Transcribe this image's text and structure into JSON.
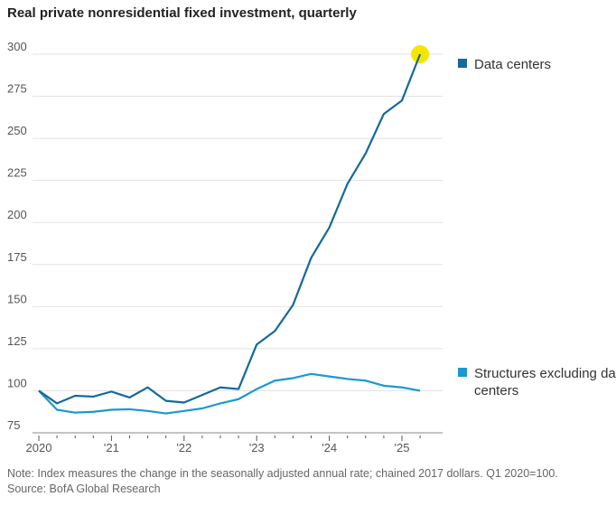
{
  "chart_data": {
    "type": "line",
    "title": "Real private nonresidential fixed investment, quarterly",
    "x": [
      "2020Q1",
      "2020Q2",
      "2020Q3",
      "2020Q4",
      "2021Q1",
      "2021Q2",
      "2021Q3",
      "2021Q4",
      "2022Q1",
      "2022Q2",
      "2022Q3",
      "2022Q4",
      "2023Q1",
      "2023Q2",
      "2023Q3",
      "2023Q4",
      "2024Q1",
      "2024Q2",
      "2024Q3",
      "2024Q4",
      "2025Q1",
      "2025Q2"
    ],
    "x_tick_labels": [
      "2020",
      "'21",
      "'22",
      "'23",
      "'24",
      "'25"
    ],
    "y_tick_labels": [
      "75",
      "100",
      "125",
      "150",
      "175",
      "200",
      "225",
      "250",
      "275",
      "300"
    ],
    "ylim": [
      75,
      300
    ],
    "grid": true,
    "legend_placement": "right",
    "series": [
      {
        "name": "Data centers",
        "color": "#14699a",
        "values": [
          100,
          92.5,
          97,
          96.5,
          99.5,
          96,
          102,
          94,
          93,
          97.5,
          102,
          101,
          127.5,
          135.5,
          151,
          179,
          197,
          223,
          241,
          264.5,
          272.5,
          300
        ]
      },
      {
        "name": "Structures excluding data centers",
        "color": "#1b98d0",
        "values": [
          100,
          88.7,
          87,
          87.5,
          88.7,
          89,
          88,
          86.5,
          88,
          89.5,
          92.5,
          95,
          101,
          106,
          107.5,
          110,
          108.5,
          107,
          106,
          103,
          102,
          100
        ]
      }
    ],
    "highlight": {
      "color": "#f5e600",
      "series": "Data centers",
      "x": "2025Q2"
    },
    "note": "Note: Index measures the change in the seasonally adjusted annual rate; chained 2017 dollars. Q1 2020=100.",
    "source": "Source: BofA Global Research"
  }
}
